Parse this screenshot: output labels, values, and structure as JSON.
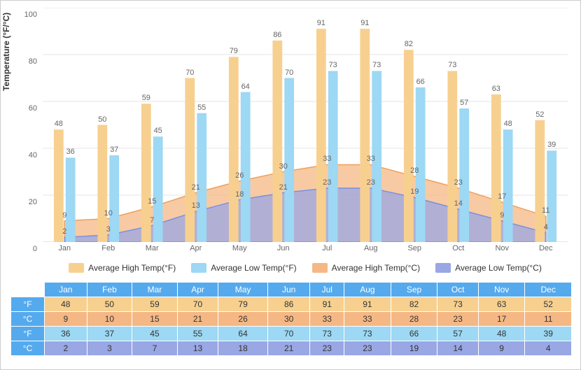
{
  "chart": {
    "type": "bar+area",
    "y_label": "Temperature (°F/°C)",
    "ylim": [
      0,
      100
    ],
    "ytick_step": 20,
    "grid_color": "#e6e6e6",
    "axis_color": "#cccccc",
    "background_color": "#ffffff",
    "label_fontsize": 11,
    "box_color": "#cccccc",
    "months": [
      "Jan",
      "Feb",
      "Mar",
      "Apr",
      "May",
      "Jun",
      "Jul",
      "Aug",
      "Sep",
      "Oct",
      "Nov",
      "Dec"
    ],
    "series": {
      "high_f": {
        "label": "Average High Temp(°F)",
        "type": "bar",
        "color": "#f7d090",
        "values": [
          48,
          50,
          59,
          70,
          79,
          86,
          91,
          91,
          82,
          73,
          63,
          52
        ]
      },
      "low_f": {
        "label": "Average Low Temp(°F)",
        "type": "bar",
        "color": "#9dd8f4",
        "values": [
          36,
          37,
          45,
          55,
          64,
          70,
          73,
          73,
          66,
          57,
          48,
          39
        ]
      },
      "high_c": {
        "label": "Average High Temp(°C)",
        "type": "area",
        "stroke": "#ee9f5a",
        "fill": "#f5b884",
        "fill_opacity": 0.75,
        "values": [
          9,
          10,
          15,
          21,
          26,
          30,
          33,
          33,
          28,
          23,
          17,
          11
        ]
      },
      "low_c": {
        "label": "Average Low Temp(°C)",
        "type": "area",
        "stroke": "#7a8fe0",
        "fill": "#99a7e4",
        "fill_opacity": 0.75,
        "values": [
          2,
          3,
          7,
          13,
          18,
          21,
          23,
          23,
          19,
          14,
          9,
          4
        ]
      }
    },
    "bar_width_rel": 0.22,
    "bar_gap_rel": 0.05
  },
  "legend": [
    {
      "label": "Average High Temp(°F)",
      "color": "#f7d090"
    },
    {
      "label": "Average Low Temp(°F)",
      "color": "#9dd8f4"
    },
    {
      "label": "Average High Temp(°C)",
      "color": "#f5b884"
    },
    {
      "label": "Average Low Temp(°C)",
      "color": "#99a7e4"
    }
  ],
  "table": {
    "header_cell_bg": "#55aaee",
    "header_cell_color": "#ffffff",
    "unit_cell_bg_f": "#55aaee",
    "unit_cell_bg_c": "#55aaee",
    "unit_labels": [
      "°F",
      "°C",
      "°F",
      "°C"
    ],
    "row_colors": [
      "#f7d090",
      "#f5b884",
      "#9dd8f4",
      "#99a7e4"
    ],
    "row_text_color": "#333333",
    "rows": [
      [
        48,
        50,
        59,
        70,
        79,
        86,
        91,
        91,
        82,
        73,
        63,
        52
      ],
      [
        9,
        10,
        15,
        21,
        26,
        30,
        33,
        33,
        28,
        23,
        17,
        11
      ],
      [
        36,
        37,
        45,
        55,
        64,
        70,
        73,
        73,
        66,
        57,
        48,
        39
      ],
      [
        2,
        3,
        7,
        13,
        18,
        21,
        23,
        23,
        19,
        14,
        9,
        4
      ]
    ]
  }
}
